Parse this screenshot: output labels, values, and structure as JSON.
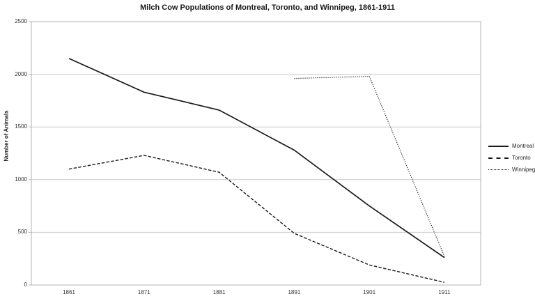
{
  "title": "Milch Cow Populations of Montreal, Toronto, and Winnipeg, 1861-1911",
  "y_axis": {
    "label": "Number of Animals",
    "ticks": [
      0,
      500,
      1000,
      1500,
      2000,
      2500
    ]
  },
  "x_axis": {
    "ticks": [
      "1861",
      "1871",
      "1881",
      "1891",
      "1901",
      "1911"
    ]
  },
  "colors": {
    "line": "#1a1a1a",
    "grid": "#c9c9c9",
    "border": "#b3b3b3",
    "text": "#333333"
  },
  "chart_data": {
    "type": "line",
    "title": "Milch Cow Populations of Montreal, Toronto, and Winnipeg, 1861-1911",
    "x": [
      1861,
      1871,
      1881,
      1891,
      1901,
      1911
    ],
    "series": [
      {
        "name": "Montreal",
        "line_style": "solid",
        "values": [
          2150,
          1830,
          1660,
          1280,
          750,
          260
        ]
      },
      {
        "name": "Toronto",
        "line_style": "dashed",
        "values": [
          1100,
          1230,
          1070,
          490,
          190,
          25
        ]
      },
      {
        "name": "Winnipeg",
        "line_style": "dotted",
        "values": [
          null,
          null,
          null,
          1960,
          1980,
          270
        ]
      }
    ],
    "xlabel": "",
    "ylabel": "Number of Animals",
    "ylim": [
      0,
      2500
    ],
    "xticks": [
      1861,
      1871,
      1881,
      1891,
      1901,
      1911
    ],
    "yticks": [
      0,
      500,
      1000,
      1500,
      2000,
      2500
    ],
    "grid": true,
    "legend_position": "right"
  }
}
